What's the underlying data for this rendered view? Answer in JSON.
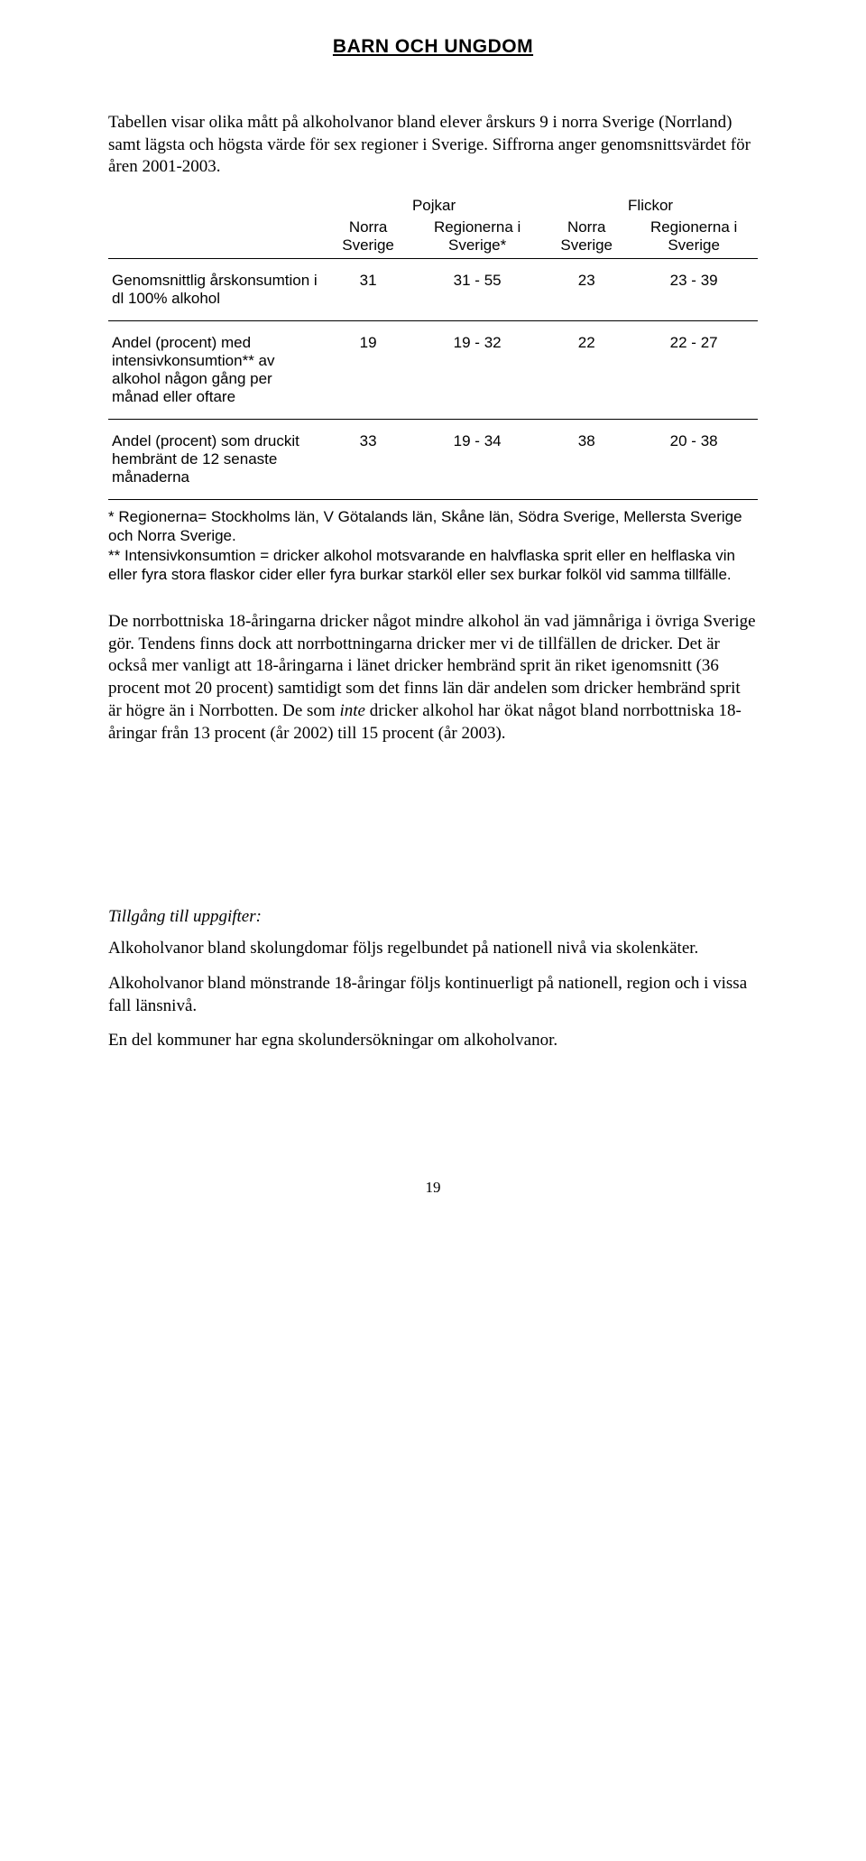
{
  "header": "BARN OCH UNGDOM",
  "intro": "Tabellen visar olika mått på alkoholvanor bland elever årskurs 9 i norra Sverige (Norrland) samt lägsta och högsta värde för sex regioner i Sverige. Siffrorna anger genomsnittsvärdet för åren 2001-2003.",
  "table": {
    "group_headers": {
      "c1": "Pojkar",
      "c2": "Flickor"
    },
    "sub_headers": {
      "a": "Norra Sverige",
      "b": "Regionerna i Sverige*",
      "c": "Norra Sverige",
      "d": "Regionerna i Sverige"
    },
    "rows": [
      {
        "label": "Genomsnittlig årskonsumtion i dl 100% alkohol",
        "a": "31",
        "b": "31 - 55",
        "c": "23",
        "d": "23 - 39"
      },
      {
        "label": "Andel (procent) med intensivkonsumtion** av alkohol någon gång per månad eller oftare",
        "a": "19",
        "b": "19 - 32",
        "c": "22",
        "d": "22 - 27"
      },
      {
        "label": "Andel (procent) som druckit hembränt de 12 senaste månaderna",
        "a": "33",
        "b": "19 - 34",
        "c": "38",
        "d": "20 - 38"
      }
    ]
  },
  "footnote1": "* Regionerna= Stockholms län, V Götalands län, Skåne län, Södra Sverige, Mellersta Sverige och Norra Sverige.",
  "footnote2": "** Intensivkonsumtion = dricker alkohol motsvarande en halvflaska sprit eller en helflaska vin eller fyra stora flaskor cider eller fyra burkar starköl eller sex burkar folköl vid samma tillfälle.",
  "body_para_pre": "De norrbottniska 18-åringarna dricker något mindre alkohol än vad jämnåriga i övriga Sverige gör. Tendens finns dock att norrbottningarna dricker mer vi de tillfällen de dricker. Det är också mer vanligt att 18-åringarna i länet dricker hembränd sprit än riket igenomsnitt (36 procent mot 20 procent) samtidigt som det finns län där andelen som dricker hembränd sprit är högre än i Norrbotten. De som ",
  "body_para_italic": "inte",
  "body_para_post": " dricker alkohol har ökat något bland norrbottniska 18-åringar från 13 procent (år 2002) till 15 procent (år 2003).",
  "sub_heading": "Tillgång till uppgifter:",
  "bullets": [
    "Alkoholvanor bland skolungdomar följs regelbundet på nationell nivå via skolenkäter.",
    "Alkoholvanor bland mönstrande 18-åringar följs kontinuerligt på nationell, region och i vissa fall länsnivå.",
    "En del kommuner har egna skolundersökningar om alkoholvanor."
  ],
  "page_number": "19"
}
